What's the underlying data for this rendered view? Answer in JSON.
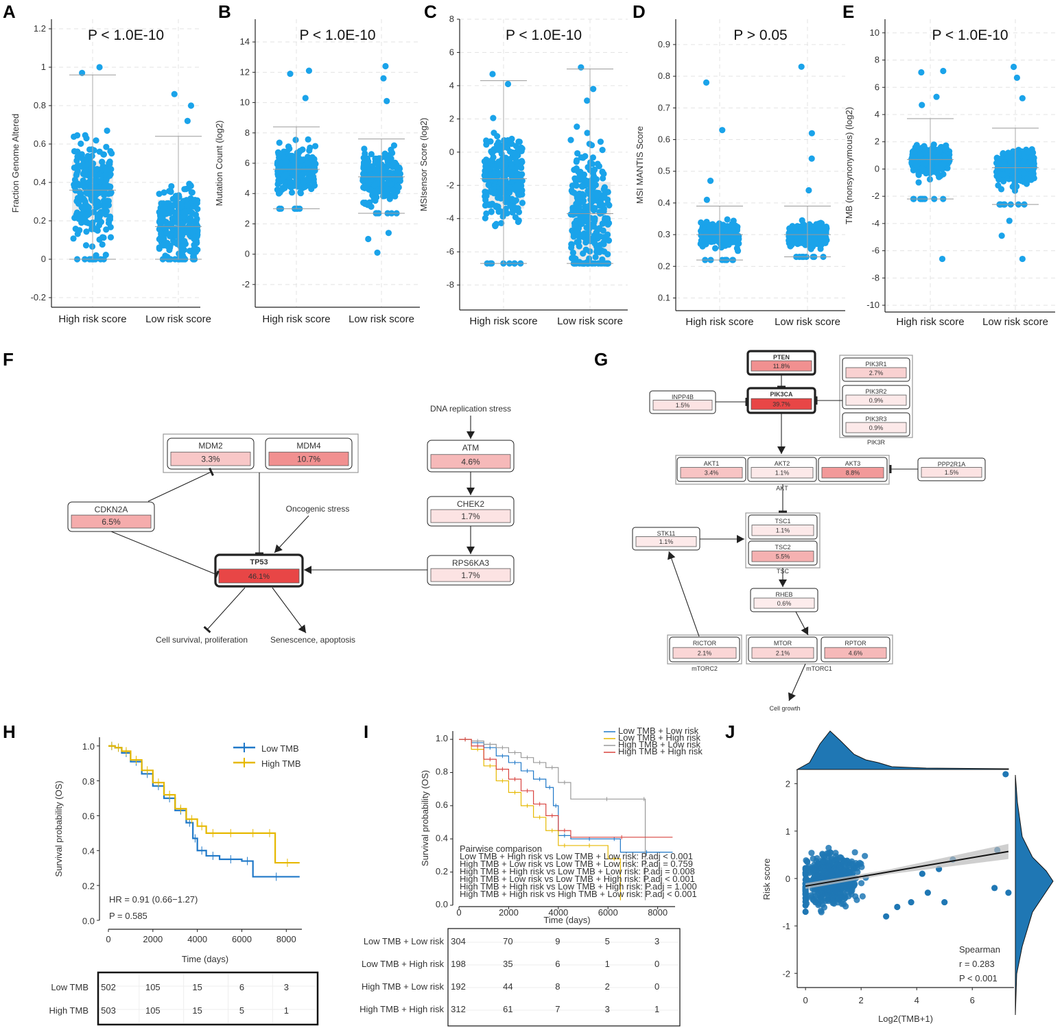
{
  "panel_labels": [
    "A",
    "B",
    "C",
    "D",
    "E",
    "F",
    "G",
    "H",
    "I",
    "J"
  ],
  "colors": {
    "point": "#1aa3ea",
    "low_tmb": "#1f78c8",
    "high_tmb": "#e6b800",
    "gray_curve": "#999999",
    "red_curve": "#d9433f",
    "scatter": "#1f77b4",
    "box_fill": "#ebebeb",
    "tp53_fill": "#e84c4c"
  },
  "chart_data": [
    {
      "panel": "A",
      "type": "scatter",
      "title": "P < 1.0E-10",
      "ylabel": "Fraction Genome Altered",
      "xlabel": "",
      "ylim": [
        -0.25,
        1.25
      ],
      "yticks": [
        -0.2,
        0,
        0.2,
        0.4,
        0.6,
        0.8,
        1,
        1.2
      ],
      "categories": [
        "High risk score",
        "Low risk score"
      ],
      "groups": [
        {
          "name": "High risk score",
          "min": 0,
          "q1": 0.21,
          "median": 0.36,
          "q3": 0.51,
          "max": 0.96,
          "outliers": [
            0.97,
            1.0
          ]
        },
        {
          "name": "Low risk score",
          "min": 0,
          "q1": 0.1,
          "median": 0.17,
          "q3": 0.31,
          "max": 0.64,
          "outliers": [
            0.72,
            0.8,
            0.86
          ]
        }
      ]
    },
    {
      "panel": "B",
      "type": "scatter",
      "title": "P < 1.0E-10",
      "ylabel": "Mutation Count (log2)",
      "xlabel": "",
      "ylim": [
        -3.5,
        15.5
      ],
      "yticks": [
        -2,
        0,
        2,
        4,
        6,
        8,
        10,
        12,
        14
      ],
      "categories": [
        "High risk score",
        "Low risk score"
      ],
      "groups": [
        {
          "name": "High risk score",
          "min": 3,
          "q1": 4.8,
          "median": 5.6,
          "q3": 6.4,
          "max": 8.4,
          "outliers": [
            10.3,
            11.9,
            12.1
          ]
        },
        {
          "name": "Low risk score",
          "min": 2.7,
          "q1": 4.3,
          "median": 5.1,
          "q3": 6,
          "max": 7.6,
          "outliers": [
            0.1,
            1,
            1.4,
            10.1,
            11.6,
            12.4
          ]
        }
      ]
    },
    {
      "panel": "C",
      "type": "scatter",
      "title": "P < 1.0E-10",
      "ylabel": "MSIsensor Score (log2)",
      "xlabel": "",
      "ylim": [
        -9.5,
        8
      ],
      "yticks": [
        -8,
        -6,
        -4,
        -2,
        0,
        2,
        4,
        6,
        8
      ],
      "categories": [
        "High risk score",
        "Low risk score"
      ],
      "groups": [
        {
          "name": "High risk score",
          "min": -6.7,
          "q1": -3.4,
          "median": -1.6,
          "q3": -0.4,
          "max": 4.3,
          "outliers": [
            4.1,
            4.7
          ]
        },
        {
          "name": "Low risk score",
          "min": -6.7,
          "q1": -6.5,
          "median": -3.7,
          "q3": -1.8,
          "max": 5,
          "outliers": [
            3.1,
            3.8,
            5.1
          ]
        }
      ]
    },
    {
      "panel": "D",
      "type": "scatter",
      "title": "P > 0.05",
      "ylabel": "MSI MANTIS Score",
      "xlabel": "",
      "ylim": [
        0.06,
        0.98
      ],
      "yticks": [
        0.1,
        0.2,
        0.3,
        0.4,
        0.5,
        0.6,
        0.7,
        0.8,
        0.9
      ],
      "categories": [
        "High risk score",
        "Low risk score"
      ],
      "groups": [
        {
          "name": "High risk score",
          "min": 0.22,
          "q1": 0.28,
          "median": 0.3,
          "q3": 0.32,
          "max": 0.39,
          "outliers": [
            0.41,
            0.47,
            0.63,
            0.78
          ]
        },
        {
          "name": "Low risk score",
          "min": 0.23,
          "q1": 0.28,
          "median": 0.3,
          "q3": 0.32,
          "max": 0.39,
          "outliers": [
            0.44,
            0.54,
            0.62,
            0.83
          ]
        }
      ]
    },
    {
      "panel": "E",
      "type": "scatter",
      "title": "P < 1.0E-10",
      "ylabel": "TMB (nonsynonymous) (log2)",
      "xlabel": "",
      "ylim": [
        -10.5,
        11
      ],
      "yticks": [
        -10,
        -8,
        -6,
        -4,
        -2,
        0,
        2,
        4,
        6,
        8,
        10
      ],
      "categories": [
        "High risk score",
        "Low risk score"
      ],
      "groups": [
        {
          "name": "High risk score",
          "min": -2.2,
          "q1": 0.1,
          "median": 0.7,
          "q3": 1.3,
          "max": 3.7,
          "outliers": [
            -6.6,
            4.7,
            5.3,
            7.1,
            7.2
          ]
        },
        {
          "name": "Low risk score",
          "min": -2.6,
          "q1": -0.5,
          "median": 0.1,
          "q3": 0.9,
          "max": 3,
          "outliers": [
            -6.6,
            -4.9,
            -3.8,
            5.2,
            6.7,
            7.5
          ]
        }
      ]
    },
    {
      "panel": "H",
      "type": "line",
      "title": "",
      "xlabel": "Time (days)",
      "ylabel": "Survival probability (OS)",
      "xlim": [
        0,
        8700
      ],
      "ylim": [
        0,
        1.05
      ],
      "xticks": [
        0,
        2000,
        4000,
        6000,
        8000
      ],
      "yticks": [
        0,
        0.2,
        0.4,
        0.6,
        0.8,
        1
      ],
      "series": [
        {
          "name": "Low TMB",
          "x": [
            0,
            300,
            600,
            1000,
            1500,
            2000,
            2500,
            3000,
            3500,
            3800,
            4000,
            4400,
            5000,
            6000,
            6500,
            8600
          ],
          "y": [
            1,
            0.99,
            0.96,
            0.91,
            0.84,
            0.77,
            0.7,
            0.63,
            0.56,
            0.47,
            0.4,
            0.37,
            0.35,
            0.34,
            0.25,
            0.25
          ]
        },
        {
          "name": "High TMB",
          "x": [
            0,
            300,
            600,
            1000,
            1500,
            2000,
            2500,
            3000,
            3500,
            4000,
            4400,
            5000,
            6000,
            7000,
            7500,
            8600
          ],
          "y": [
            1,
            0.99,
            0.97,
            0.92,
            0.86,
            0.79,
            0.72,
            0.64,
            0.58,
            0.54,
            0.5,
            0.5,
            0.5,
            0.5,
            0.33,
            0.33
          ]
        }
      ],
      "annotations": [
        "HR = 0.91 (0.66−1.27)",
        "P = 0.585"
      ],
      "risk_table": {
        "rows": [
          {
            "name": "Low TMB",
            "values": [
              "502",
              "105",
              "15",
              "6",
              "3"
            ]
          },
          {
            "name": "High TMB",
            "values": [
              "503",
              "105",
              "15",
              "5",
              "1"
            ]
          }
        ]
      }
    },
    {
      "panel": "I",
      "type": "line",
      "title": "",
      "xlabel": "Time (days)",
      "ylabel": "Survival probability (OS)",
      "xlim": [
        0,
        8700
      ],
      "ylim": [
        0,
        1.05
      ],
      "xticks": [
        0,
        2000,
        4000,
        6000,
        8000
      ],
      "yticks": [
        0,
        0.2,
        0.4,
        0.6,
        0.8,
        1
      ],
      "series": [
        {
          "name": "Low TMB + Low risk",
          "x": [
            0,
            500,
            1000,
            1500,
            2000,
            2500,
            3000,
            3500,
            3800,
            4000,
            4500,
            6000,
            6500,
            8600
          ],
          "y": [
            1,
            0.98,
            0.95,
            0.9,
            0.86,
            0.81,
            0.76,
            0.71,
            0.6,
            0.42,
            0.4,
            0.4,
            0.32,
            0.32
          ]
        },
        {
          "name": "Low TMB + High risk",
          "x": [
            0,
            500,
            1000,
            1500,
            2000,
            2500,
            3000,
            3500,
            4000,
            4500,
            6000,
            6500
          ],
          "y": [
            1,
            0.94,
            0.84,
            0.75,
            0.68,
            0.6,
            0.53,
            0.45,
            0.36,
            0.36,
            0.28,
            0.03
          ]
        },
        {
          "name": "High TMB + Low risk",
          "x": [
            0,
            500,
            1000,
            1500,
            2000,
            2500,
            3000,
            3500,
            4000,
            4500,
            7400,
            7500
          ],
          "y": [
            1,
            0.99,
            0.97,
            0.95,
            0.92,
            0.89,
            0.86,
            0.83,
            0.74,
            0.64,
            0.64,
            0.03
          ]
        },
        {
          "name": "High TMB + High risk",
          "x": [
            0,
            500,
            1000,
            1500,
            2000,
            2500,
            3000,
            3500,
            4000,
            4500,
            8600
          ],
          "y": [
            1,
            0.96,
            0.88,
            0.82,
            0.76,
            0.69,
            0.61,
            0.54,
            0.45,
            0.41,
            0.41
          ]
        }
      ],
      "annotations": [
        "Pairwise comparison",
        "Low TMB + High risk vs Low TMB + Low risk: P.adj < 0.001",
        "High TMB + Low risk vs Low TMB + Low risk: P.adj = 0.759",
        "High TMB + High risk vs Low TMB + Low risk: P.adj = 0.008",
        "High TMB + Low risk vs Low TMB + High risk: P.adj < 0.001",
        "High TMB + High risk vs Low TMB + High risk: P.adj = 1.000",
        "High TMB + High risk vs High TMB + Low risk: P.adj < 0.001"
      ],
      "risk_table": {
        "rows": [
          {
            "name": "Low TMB + Low risk",
            "values": [
              "304",
              "70",
              "9",
              "5",
              "3"
            ]
          },
          {
            "name": "Low TMB + High risk",
            "values": [
              "198",
              "35",
              "6",
              "1",
              "0"
            ]
          },
          {
            "name": "High TMB + Low risk",
            "values": [
              "192",
              "44",
              "8",
              "2",
              "0"
            ]
          },
          {
            "name": "High TMB + High risk",
            "values": [
              "312",
              "61",
              "7",
              "3",
              "1"
            ]
          }
        ]
      }
    },
    {
      "panel": "J",
      "type": "scatter",
      "title": "",
      "xlabel": "Log2(TMB+1)",
      "ylabel": "Risk score",
      "xlim": [
        -0.3,
        7.5
      ],
      "ylim": [
        -2.3,
        2.3
      ],
      "xticks": [
        0,
        2,
        4,
        6
      ],
      "yticks": [
        -2,
        -1,
        0,
        1,
        2
      ],
      "fit": {
        "slope": 0.1,
        "intercept": -0.16
      },
      "outliers": [
        [
          7.2,
          2.2
        ],
        [
          5.3,
          0.4
        ],
        [
          5,
          -0.5
        ],
        [
          4.8,
          0.2
        ],
        [
          4.4,
          -0.3
        ],
        [
          6.8,
          -0.2
        ],
        [
          7.3,
          -0.3
        ],
        [
          6.9,
          0.6
        ],
        [
          3.3,
          -0.6
        ],
        [
          2.9,
          -0.8
        ],
        [
          3.8,
          -0.5
        ],
        [
          4.2,
          0.1
        ]
      ],
      "annotations": [
        "Spearman",
        "r = 0.283",
        "P < 0.001"
      ]
    }
  ],
  "panel_f": {
    "genes": [
      {
        "name": "MDM2",
        "value": "3.3%",
        "alpha": 0.3
      },
      {
        "name": "MDM4",
        "value": "10.7%",
        "alpha": 0.6
      },
      {
        "name": "CDKN2A",
        "value": "6.5%",
        "alpha": 0.45
      },
      {
        "name": "TP53",
        "value": "46.1%",
        "alpha": 1
      },
      {
        "name": "ATM",
        "value": "4.6%",
        "alpha": 0.38
      },
      {
        "name": "CHEK2",
        "value": "1.7%",
        "alpha": 0.15
      },
      {
        "name": "RPS6KA3",
        "value": "1.7%",
        "alpha": 0.15
      }
    ],
    "notes": [
      "DNA replication stress",
      "Oncogenic stress",
      "Cell survival, proliferation",
      "Senescence, apoptosis"
    ]
  },
  "panel_g": {
    "genes": [
      {
        "name": "PTEN",
        "value": "11.8%",
        "alpha": 0.6
      },
      {
        "name": "PIK3R1",
        "value": "2.7%",
        "alpha": 0.25
      },
      {
        "name": "PIK3R2",
        "value": "0.9%",
        "alpha": 0.12
      },
      {
        "name": "PIK3R3",
        "value": "0.9%",
        "alpha": 0.12
      },
      {
        "name": "INPP4B",
        "value": "1.5%",
        "alpha": 0.15
      },
      {
        "name": "PIK3CA",
        "value": "39.7%",
        "alpha": 1
      },
      {
        "name": "AKT1",
        "value": "3.4%",
        "alpha": 0.32
      },
      {
        "name": "AKT2",
        "value": "1.1%",
        "alpha": 0.12
      },
      {
        "name": "AKT3",
        "value": "8.8%",
        "alpha": 0.55
      },
      {
        "name": "PPP2R1A",
        "value": "1.5%",
        "alpha": 0.15
      },
      {
        "name": "STK11",
        "value": "1.1%",
        "alpha": 0.12
      },
      {
        "name": "TSC1",
        "value": "1.1%",
        "alpha": 0.12
      },
      {
        "name": "TSC2",
        "value": "5.5%",
        "alpha": 0.42
      },
      {
        "name": "RHEB",
        "value": "0.6%",
        "alpha": 0.1
      },
      {
        "name": "RICTOR",
        "value": "2.1%",
        "alpha": 0.22
      },
      {
        "name": "MTOR",
        "value": "2.1%",
        "alpha": 0.22
      },
      {
        "name": "RPTOR",
        "value": "4.6%",
        "alpha": 0.38
      }
    ],
    "groups": [
      "PIK3R",
      "AKT",
      "TSC",
      "mTORC2",
      "mTORC1"
    ],
    "notes": [
      "Cell growth"
    ]
  }
}
